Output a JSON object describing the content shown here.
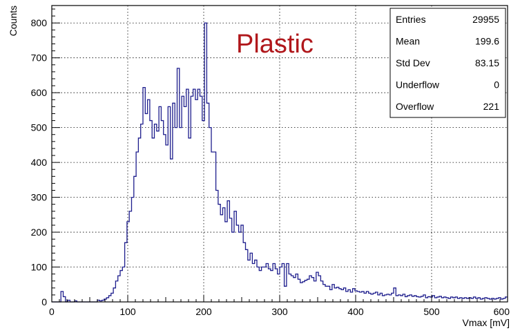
{
  "chart_data": {
    "type": "histogram",
    "title": "",
    "xlabel": "Vmax [mV]",
    "ylabel": "Counts",
    "xlim": [
      0,
      600
    ],
    "ylim": [
      0,
      850
    ],
    "grid": true,
    "annotation": "Plastic",
    "x_ticks": [
      "0",
      "100",
      "200",
      "300",
      "400",
      "500",
      "600"
    ],
    "y_ticks": [
      "0",
      "100",
      "200",
      "300",
      "400",
      "500",
      "600",
      "700",
      "800"
    ],
    "bin_width": 3,
    "bin_start": 0,
    "values": [
      0,
      0,
      0,
      0,
      30,
      15,
      0,
      5,
      0,
      0,
      3,
      0,
      0,
      0,
      0,
      0,
      0,
      0,
      0,
      0,
      5,
      3,
      5,
      8,
      12,
      18,
      25,
      40,
      60,
      75,
      90,
      100,
      170,
      230,
      260,
      300,
      360,
      430,
      470,
      510,
      615,
      540,
      580,
      520,
      470,
      510,
      490,
      560,
      520,
      480,
      450,
      560,
      410,
      570,
      500,
      670,
      500,
      590,
      560,
      610,
      470,
      590,
      610,
      580,
      610,
      590,
      520,
      800,
      570,
      500,
      430,
      430,
      320,
      280,
      250,
      270,
      230,
      290,
      240,
      200,
      260,
      220,
      200,
      220,
      170,
      150,
      120,
      140,
      110,
      120,
      100,
      90,
      100,
      100,
      110,
      95,
      90,
      110,
      95,
      80,
      100,
      110,
      45,
      110,
      80,
      75,
      70,
      80,
      65,
      55,
      58,
      62,
      65,
      75,
      70,
      60,
      85,
      75,
      60,
      50,
      45,
      45,
      35,
      50,
      40,
      42,
      38,
      35,
      40,
      30,
      35,
      28,
      38,
      32,
      30,
      28,
      30,
      25,
      30,
      25,
      22,
      25,
      28,
      20,
      25,
      18,
      20,
      22,
      20,
      25,
      40,
      18,
      20,
      18,
      22,
      15,
      18,
      20,
      16,
      18,
      15,
      14,
      16,
      20,
      12,
      15,
      14,
      18,
      12,
      14,
      16,
      12,
      14,
      12,
      10,
      14,
      12,
      14,
      10,
      12,
      10,
      12,
      10,
      12,
      10,
      14,
      10,
      12,
      8,
      10,
      12,
      10,
      8,
      10,
      8,
      10,
      12,
      8,
      10,
      14
    ],
    "stats": [
      {
        "label": "Entries",
        "value": "29955"
      },
      {
        "label": "Mean",
        "value": "199.6"
      },
      {
        "label": "Std Dev",
        "value": "83.15"
      },
      {
        "label": "Underflow",
        "value": "0"
      },
      {
        "label": "Overflow",
        "value": "221"
      }
    ],
    "line_color": "#1c1c8c",
    "annotation_color": "#b0171b"
  }
}
